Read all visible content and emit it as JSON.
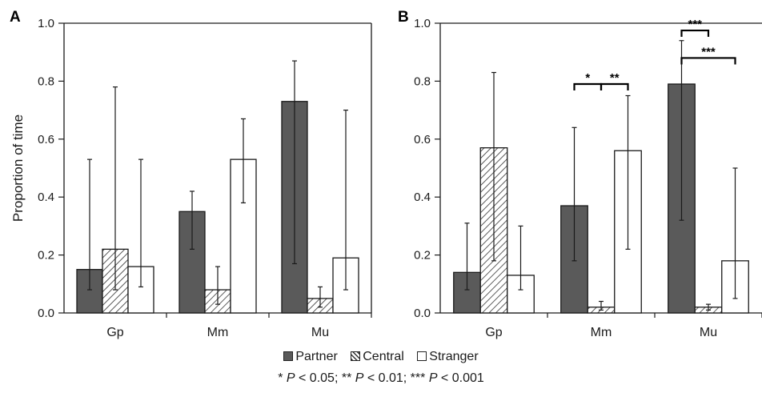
{
  "chart_data": [
    {
      "type": "bar",
      "panel": "A",
      "categories": [
        "Gp",
        "Mm",
        "Mu"
      ],
      "ylabel": "Proportion of  time",
      "ylim": [
        0,
        1.0
      ],
      "yticks": [
        "0.0",
        "0.2",
        "0.4",
        "0.6",
        "0.8",
        "1.0"
      ],
      "series": [
        {
          "name": "Partner",
          "values": [
            0.15,
            0.35,
            0.73
          ],
          "err_low": [
            0.08,
            0.22,
            0.17
          ],
          "err_high": [
            0.53,
            0.42,
            0.87
          ]
        },
        {
          "name": "Central",
          "values": [
            0.22,
            0.08,
            0.05
          ],
          "err_low": [
            0.08,
            0.03,
            0.02
          ],
          "err_high": [
            0.78,
            0.16,
            0.09
          ]
        },
        {
          "name": "Stranger",
          "values": [
            0.16,
            0.53,
            0.19
          ],
          "err_low": [
            0.09,
            0.38,
            0.08
          ],
          "err_high": [
            0.53,
            0.67,
            0.7
          ]
        }
      ],
      "significance": []
    },
    {
      "type": "bar",
      "panel": "B",
      "categories": [
        "Gp",
        "Mm",
        "Mu"
      ],
      "ylim": [
        0,
        1.0
      ],
      "yticks": [
        "0.0",
        "0.2",
        "0.4",
        "0.6",
        "0.8",
        "1.0"
      ],
      "series": [
        {
          "name": "Partner",
          "values": [
            0.14,
            0.37,
            0.79
          ],
          "err_low": [
            0.08,
            0.18,
            0.32
          ],
          "err_high": [
            0.31,
            0.64,
            0.94
          ]
        },
        {
          "name": "Central",
          "values": [
            0.57,
            0.02,
            0.02
          ],
          "err_low": [
            0.18,
            0.01,
            0.01
          ],
          "err_high": [
            0.83,
            0.04,
            0.03
          ]
        },
        {
          "name": "Stranger",
          "values": [
            0.13,
            0.56,
            0.18
          ],
          "err_low": [
            0.08,
            0.22,
            0.05
          ],
          "err_high": [
            0.3,
            0.75,
            0.5
          ]
        }
      ],
      "significance": [
        {
          "category": "Mm",
          "from": "Partner",
          "to": "Central",
          "label": "*"
        },
        {
          "category": "Mm",
          "from": "Central",
          "to": "Stranger",
          "label": "**"
        },
        {
          "category": "Mu",
          "from": "Partner",
          "to": "Central",
          "label": "***"
        },
        {
          "category": "Mu",
          "from": "Partner",
          "to": "Stranger",
          "label": "***"
        }
      ]
    }
  ],
  "legend": [
    {
      "label": "Partner",
      "pattern": "solid",
      "color": "#5a5a5a"
    },
    {
      "label": "Central",
      "pattern": "hatched",
      "color": "#444444"
    },
    {
      "label": "Stranger",
      "pattern": "open",
      "color": "#ffffff"
    }
  ],
  "footnote": {
    "p1_prefix": "* ",
    "p1_sym": "P",
    "p1_val": " < 0.05;",
    "p2_prefix": " ** ",
    "p2_sym": "P",
    "p2_val": " < 0.01;",
    "p3_prefix": " *** ",
    "p3_sym": "P",
    "p3_val": " < 0.001"
  },
  "colors": {
    "partner": "#5a5a5a",
    "axis": "#1a1a1a"
  }
}
